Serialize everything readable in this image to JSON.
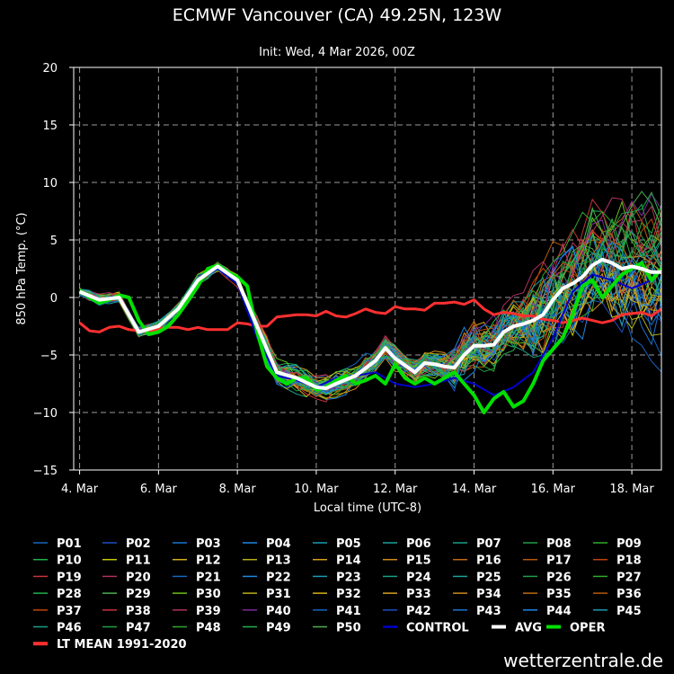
{
  "chart_data": {
    "type": "line",
    "title": "ECMWF Vancouver (CA) 49.25N, 123W",
    "subtitle": "Init: Wed, 4 Mar 2026, 00Z",
    "xlabel": "Local time (UTC-8)",
    "ylabel": "850 hPa Temp. (°C)",
    "ylim": [
      -15,
      20
    ],
    "xlim": [
      -0.15,
      14.75
    ],
    "yticks": [
      -15,
      -10,
      -5,
      0,
      5,
      10,
      15,
      20
    ],
    "xticks": [
      {
        "x": 0,
        "label": "4. Mar"
      },
      {
        "x": 2,
        "label": "6. Mar"
      },
      {
        "x": 4,
        "label": "8. Mar"
      },
      {
        "x": 6,
        "label": "10. Mar"
      },
      {
        "x": 8,
        "label": "12. Mar"
      },
      {
        "x": 10,
        "label": "14. Mar"
      },
      {
        "x": 12,
        "label": "16. Mar"
      },
      {
        "x": 14,
        "label": "18. Mar"
      }
    ],
    "grid": true,
    "ensemble_members": [
      "P01",
      "P02",
      "P03",
      "P04",
      "P05",
      "P06",
      "P07",
      "P08",
      "P09",
      "P10",
      "P11",
      "P12",
      "P13",
      "P14",
      "P15",
      "P16",
      "P17",
      "P18",
      "P19",
      "P20",
      "P21",
      "P22",
      "P23",
      "P24",
      "P25",
      "P26",
      "P27",
      "P28",
      "P29",
      "P30",
      "P31",
      "P32",
      "P33",
      "P34",
      "P35",
      "P36",
      "P37",
      "P38",
      "P39",
      "P40",
      "P41",
      "P42",
      "P43",
      "P44",
      "P45",
      "P46",
      "P47",
      "P48",
      "P49",
      "P50"
    ],
    "member_colors": [
      "#1565c0",
      "#1e4fc4",
      "#1976d2",
      "#1e88e5",
      "#1a9bb4",
      "#1aa39a",
      "#16a085",
      "#1f9e4a",
      "#2eab2e",
      "#22b14c",
      "#c8c80a",
      "#d4b01a",
      "#b8b016",
      "#d6a21e",
      "#d08a1c",
      "#c06a10",
      "#b85a0a",
      "#c0440e",
      "#c8323a",
      "#b03060",
      "#1565c0",
      "#1e88e5",
      "#1a9bb4",
      "#16a085",
      "#1aa39a",
      "#1f9e4a",
      "#2eab2e",
      "#22b14c",
      "#4caf50",
      "#6cbf1c",
      "#b8b016",
      "#d4b01a",
      "#d6a21e",
      "#d08a1c",
      "#c06a10",
      "#b85a0a",
      "#c0440e",
      "#c8323a",
      "#b03060",
      "#7a2a9a",
      "#1565c0",
      "#1e4fc4",
      "#1976d2",
      "#1e88e5",
      "#1a9bb4",
      "#16a085",
      "#1f9e4a",
      "#2eab2e",
      "#22b14c",
      "#4caf50"
    ],
    "series": [
      {
        "name": "CONTROL",
        "color": "#0000cc",
        "x": [
          0,
          0.5,
          1,
          1.5,
          2,
          2.5,
          3,
          3.5,
          4,
          4.5,
          5,
          5.5,
          6,
          6.5,
          7,
          7.5,
          8,
          8.5,
          9,
          9.5,
          10,
          10.5,
          11,
          11.5,
          12,
          12.5,
          13,
          13.5,
          14,
          14.5
        ],
        "values": [
          0.5,
          -0.2,
          0.2,
          -3.0,
          -2.5,
          -1.0,
          1.5,
          2.5,
          1.2,
          -3.5,
          -6.8,
          -7.2,
          -7.8,
          -7.0,
          -6.8,
          -6.5,
          -7.5,
          -7.8,
          -7.5,
          -7.0,
          -7.5,
          -8.5,
          -7.8,
          -6.5,
          -3.5,
          0.5,
          2.0,
          1.5,
          0.8,
          1.5
        ]
      },
      {
        "name": "AVG",
        "color": "#ffffff",
        "x": [
          0,
          0.5,
          1,
          1.5,
          2,
          2.5,
          3,
          3.5,
          4,
          4.5,
          5,
          5.5,
          6,
          6.25,
          6.5,
          7,
          7.5,
          7.75,
          8,
          8.5,
          8.75,
          9,
          9.25,
          9.5,
          9.75,
          10,
          10.25,
          10.5,
          10.75,
          11,
          11.25,
          11.5,
          11.75,
          12,
          12.25,
          12.5,
          12.75,
          13,
          13.25,
          13.5,
          13.75,
          14,
          14.25,
          14.5,
          14.75
        ],
        "values": [
          0.5,
          -0.2,
          0.0,
          -3.0,
          -2.5,
          -1.0,
          1.5,
          2.7,
          1.5,
          -2.5,
          -6.5,
          -7.0,
          -7.8,
          -7.9,
          -7.5,
          -6.8,
          -5.5,
          -4.4,
          -5.3,
          -6.5,
          -5.7,
          -5.8,
          -6.0,
          -6.1,
          -5.0,
          -4.2,
          -4.2,
          -4.1,
          -3.0,
          -2.5,
          -2.3,
          -2.0,
          -1.5,
          -0.2,
          0.8,
          1.2,
          1.8,
          2.8,
          3.3,
          3.0,
          2.5,
          2.7,
          2.5,
          2.2,
          2.2
        ]
      },
      {
        "name": "OPER",
        "color": "#00e000",
        "x": [
          0,
          0.25,
          0.5,
          0.75,
          1,
          1.25,
          1.5,
          1.75,
          2,
          2.25,
          2.5,
          2.75,
          3,
          3.25,
          3.5,
          3.75,
          4,
          4.25,
          4.5,
          4.75,
          5,
          5.25,
          5.5,
          5.75,
          6,
          6.25,
          6.5,
          6.75,
          7,
          7.25,
          7.5,
          7.75,
          8,
          8.25,
          8.5,
          8.75,
          9,
          9.25,
          9.5,
          9.75,
          10,
          10.25,
          10.5,
          10.75,
          11,
          11.25,
          11.5,
          11.75,
          12,
          12.25,
          12.5,
          12.75,
          13,
          13.25,
          13.5,
          13.75,
          14,
          14.25,
          14.5,
          14.75
        ],
        "values": [
          0.6,
          0.0,
          -0.5,
          -0.2,
          0.2,
          0.0,
          -2.0,
          -3.2,
          -3.0,
          -2.5,
          -1.5,
          -0.3,
          1.0,
          2.5,
          2.8,
          2.2,
          1.8,
          1.0,
          -3.0,
          -6.0,
          -7.0,
          -7.5,
          -7.0,
          -7.0,
          -8.0,
          -7.8,
          -7.2,
          -6.8,
          -7.5,
          -7.2,
          -6.8,
          -7.5,
          -5.8,
          -7.0,
          -7.5,
          -7.0,
          -7.5,
          -7.0,
          -6.5,
          -7.5,
          -8.5,
          -10.0,
          -8.8,
          -8.2,
          -9.5,
          -9.0,
          -7.5,
          -5.5,
          -4.5,
          -3.5,
          -1.5,
          1.0,
          1.5,
          0.0,
          1.0,
          2.0,
          2.5,
          3.0,
          1.5,
          2.5
        ]
      },
      {
        "name": "LT MEAN 1991-2020",
        "color": "#ff3030",
        "x": [
          0,
          0.25,
          0.5,
          0.75,
          1,
          1.25,
          1.5,
          1.75,
          2,
          2.25,
          2.5,
          2.75,
          3,
          3.25,
          3.5,
          3.75,
          4,
          4.25,
          4.5,
          4.75,
          5,
          5.25,
          5.5,
          5.75,
          6,
          6.25,
          6.5,
          6.75,
          7,
          7.25,
          7.5,
          7.75,
          8,
          8.25,
          8.5,
          8.75,
          9,
          9.25,
          9.5,
          9.75,
          10,
          10.25,
          10.5,
          10.75,
          11,
          11.25,
          11.5,
          11.75,
          12,
          12.25,
          12.5,
          12.75,
          13,
          13.25,
          13.5,
          13.75,
          14,
          14.25,
          14.5,
          14.75
        ],
        "values": [
          -2.2,
          -2.9,
          -3.0,
          -2.6,
          -2.5,
          -2.8,
          -2.9,
          -3.0,
          -2.7,
          -2.6,
          -2.6,
          -2.8,
          -2.6,
          -2.8,
          -2.8,
          -2.8,
          -2.2,
          -2.3,
          -2.5,
          -2.5,
          -1.7,
          -1.6,
          -1.5,
          -1.5,
          -1.6,
          -1.2,
          -1.6,
          -1.7,
          -1.4,
          -1.0,
          -1.3,
          -1.4,
          -0.8,
          -1.0,
          -1.0,
          -1.1,
          -0.5,
          -0.5,
          -0.4,
          -0.6,
          -0.2,
          -1.0,
          -1.5,
          -1.3,
          -1.4,
          -1.6,
          -1.6,
          -1.9,
          -2.0,
          -2.2,
          -2.0,
          -1.8,
          -2.0,
          -2.2,
          -2.0,
          -1.5,
          -1.4,
          -1.3,
          -1.6,
          -1.0
        ]
      }
    ],
    "legend": {
      "placement": "bottom",
      "member_rows": [
        [
          "P01",
          "P02",
          "P03",
          "P04",
          "P05",
          "P06",
          "P07",
          "P08",
          "P09"
        ],
        [
          "P10",
          "P11",
          "P12",
          "P13",
          "P14",
          "P15",
          "P16",
          "P17",
          "P18"
        ],
        [
          "P19",
          "P20",
          "P21",
          "P22",
          "P23",
          "P24",
          "P25",
          "P26",
          "P27"
        ],
        [
          "P28",
          "P29",
          "P30",
          "P31",
          "P32",
          "P33",
          "P34",
          "P35",
          "P36"
        ],
        [
          "P37",
          "P38",
          "P39",
          "P40",
          "P41",
          "P42",
          "P43",
          "P44",
          "P45"
        ],
        [
          "P46",
          "P47",
          "P48",
          "P49",
          "P50"
        ]
      ],
      "extra_row6": [
        "CONTROL",
        "AVG",
        "OPER"
      ],
      "last_row": [
        "LT MEAN 1991-2020"
      ]
    }
  },
  "watermark": "wetterzentrale.de"
}
